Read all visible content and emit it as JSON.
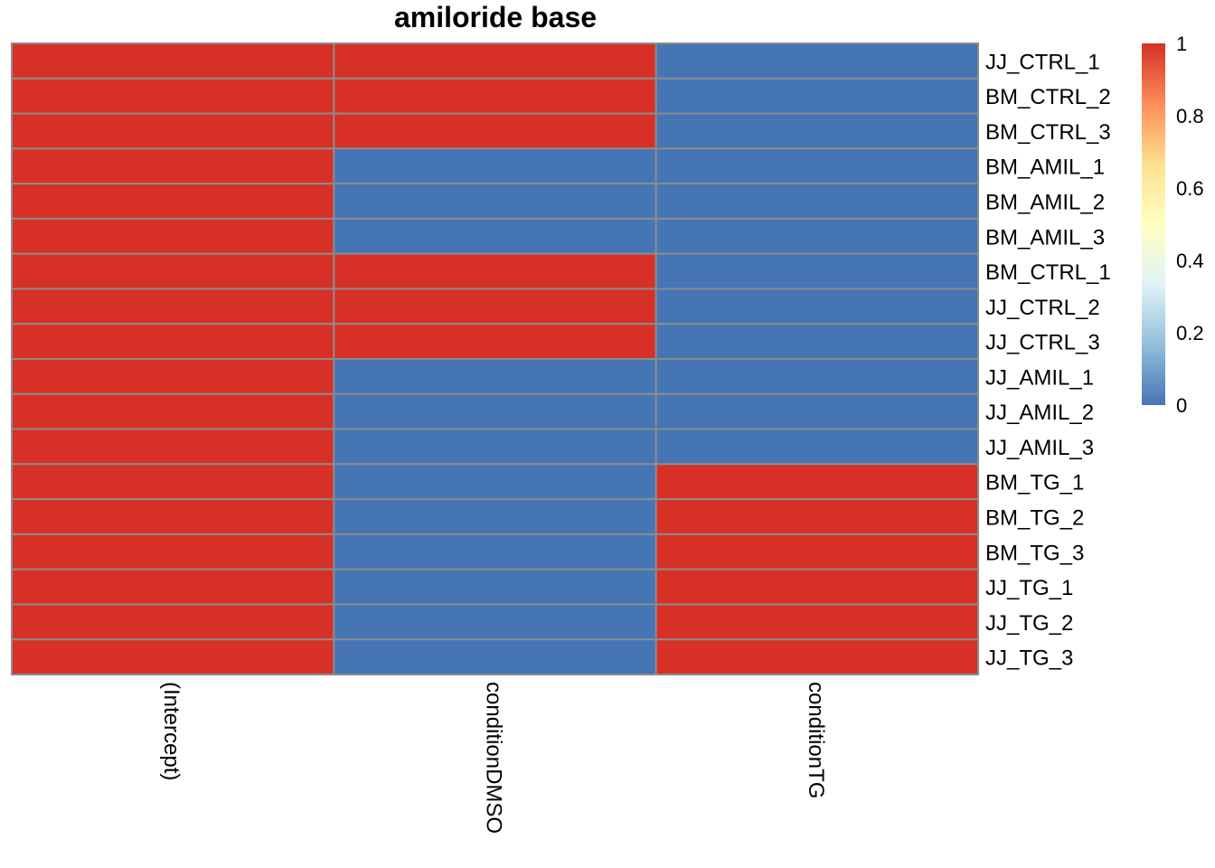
{
  "chart_data": {
    "type": "heatmap",
    "title": "amiloride base",
    "columns": [
      "(Intercept)",
      "conditionDMSO",
      "conditionTG"
    ],
    "rows": [
      "JJ_CTRL_1",
      "BM_CTRL_2",
      "BM_CTRL_3",
      "BM_AMIL_1",
      "BM_AMIL_2",
      "BM_AMIL_3",
      "BM_CTRL_1",
      "JJ_CTRL_2",
      "JJ_CTRL_3",
      "JJ_AMIL_1",
      "JJ_AMIL_2",
      "JJ_AMIL_3",
      "BM_TG_1",
      "BM_TG_2",
      "BM_TG_3",
      "JJ_TG_1",
      "JJ_TG_2",
      "JJ_TG_3"
    ],
    "values": [
      [
        1,
        1,
        0
      ],
      [
        1,
        1,
        0
      ],
      [
        1,
        1,
        0
      ],
      [
        1,
        0,
        0
      ],
      [
        1,
        0,
        0
      ],
      [
        1,
        0,
        0
      ],
      [
        1,
        1,
        0
      ],
      [
        1,
        1,
        0
      ],
      [
        1,
        1,
        0
      ],
      [
        1,
        0,
        0
      ],
      [
        1,
        0,
        0
      ],
      [
        1,
        0,
        0
      ],
      [
        1,
        0,
        1
      ],
      [
        1,
        0,
        1
      ],
      [
        1,
        0,
        1
      ],
      [
        1,
        0,
        1
      ],
      [
        1,
        0,
        1
      ],
      [
        1,
        0,
        1
      ]
    ],
    "color_scale": {
      "min": 0,
      "max": 1,
      "stops": [
        "#4575B4",
        "#91BFDB",
        "#E0F3F8",
        "#FFFFBF",
        "#FEE090",
        "#FC8D59",
        "#D73027"
      ],
      "ticks": [
        "0",
        "0.2",
        "0.4",
        "0.6",
        "0.8",
        "1"
      ]
    },
    "cell_border_color": "#8C8C8C",
    "legend_position": "right"
  }
}
